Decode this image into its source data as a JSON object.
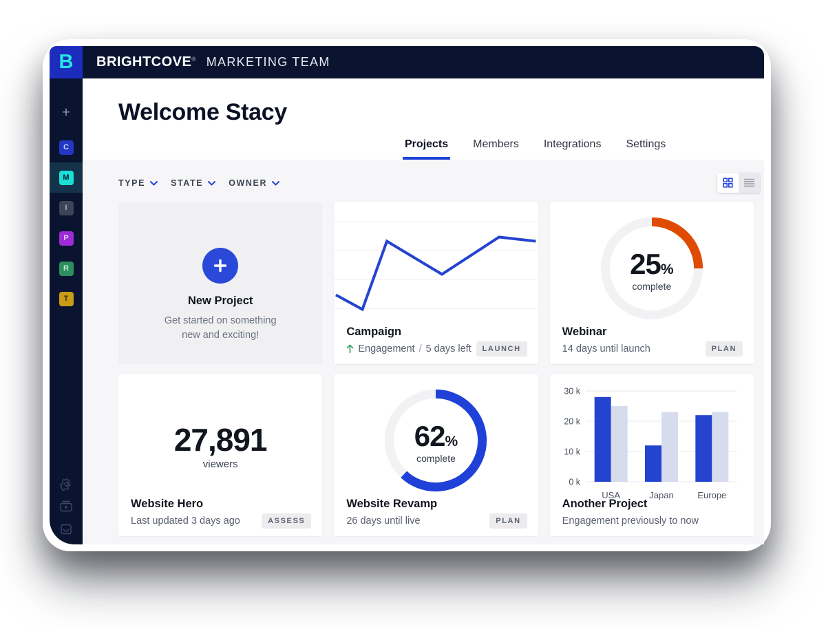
{
  "brand": {
    "name": "BRIGHTCOVE",
    "registered": "®",
    "workspace": "MARKETING TEAM",
    "logo_letter": "B"
  },
  "colors": {
    "navy": "#0a1430",
    "logo_blue": "#1c2dbd",
    "cyan": "#25e8e4",
    "accent_blue": "#2444d0",
    "donut_blue": "#1f41d8",
    "orange": "#e04b04",
    "donut_track": "#f2f2f4",
    "bar_light": "#d7dbee",
    "green_arrow": "#3aa36c",
    "tab_underline": "#1f45d8"
  },
  "icons": {
    "sidebar_plus": "plus-icon",
    "settings": "gear-icon",
    "video_library": "video-library-icon",
    "bag": "bag-icon",
    "filter_chevron": "chevron-down-icon",
    "grid_view": "grid-view-icon",
    "list_view": "list-view-icon",
    "trend": "trend-up-arrow-icon",
    "new_project": "plus-circle-icon"
  },
  "sidebar": {
    "plus": "+",
    "tiles": [
      {
        "letter": "C",
        "bg": "#2337c4",
        "fg": "#ccd6ff",
        "active": false
      },
      {
        "letter": "M",
        "bg": "#1ae0d4",
        "fg": "#0a1532",
        "active": true
      },
      {
        "letter": "I",
        "bg": "#3c4557",
        "fg": "#aab2c2",
        "active": false
      },
      {
        "letter": "P",
        "bg": "#9d2bd6",
        "fg": "#e8cdf8",
        "active": false
      },
      {
        "letter": "R",
        "bg": "#2e8f5e",
        "fg": "#c6e9d6",
        "active": false
      },
      {
        "letter": "T",
        "bg": "#c99c16",
        "fg": "#443607",
        "active": false
      }
    ]
  },
  "header": {
    "welcome": "Welcome Stacy"
  },
  "tabs": [
    {
      "label": "Projects",
      "active": true
    },
    {
      "label": "Members",
      "active": false
    },
    {
      "label": "Integrations",
      "active": false
    },
    {
      "label": "Settings",
      "active": false
    }
  ],
  "filters": [
    {
      "label": "TYPE"
    },
    {
      "label": "STATE"
    },
    {
      "label": "OWNER"
    }
  ],
  "cards": {
    "new_project": {
      "title": "New Project",
      "subtitle_line1": "Get started on something",
      "subtitle_line2": "new and exciting!"
    },
    "campaign": {
      "title": "Campaign",
      "metric_label": "Engagement",
      "separator": "/",
      "time_left": "5 days left",
      "badge": "LAUNCH"
    },
    "webinar": {
      "title": "Webinar",
      "subtitle": "14 days until launch",
      "badge": "PLAN"
    },
    "website_hero": {
      "stat": "27,891",
      "stat_label": "viewers",
      "title": "Website Hero",
      "subtitle": "Last updated 3 days ago",
      "badge": "ASSESS"
    },
    "website_revamp": {
      "title": "Website Revamp",
      "subtitle": "26 days until live",
      "badge": "PLAN"
    },
    "another_project": {
      "title": "Another Project",
      "subtitle": "Engagement previously to now"
    }
  },
  "chart_data": [
    {
      "id": "campaign-engagement",
      "type": "line",
      "series_name": "Engagement",
      "x_pct": [
        1,
        14,
        26,
        53,
        81,
        99
      ],
      "values_pct": [
        21,
        7,
        73,
        41,
        77,
        73
      ],
      "gridlines_y_pct": [
        8,
        36,
        64,
        92
      ],
      "color": "#2444d0",
      "grid": "horizontal",
      "legend": "none"
    },
    {
      "id": "webinar-progress",
      "type": "donut",
      "percent": 25,
      "unit": "%",
      "caption": "complete",
      "color": "#e04b04",
      "track": "#f2f2f4"
    },
    {
      "id": "website-revamp-progress",
      "type": "donut",
      "percent": 62,
      "unit": "%",
      "caption": "complete",
      "color": "#1f41d8",
      "track": "#f2f2f4"
    },
    {
      "id": "another-project-engagement",
      "type": "bar",
      "categories": [
        "USA",
        "Japan",
        "Europe"
      ],
      "series": [
        {
          "name": "series-1-blue",
          "color": "#2444d0",
          "values": [
            28,
            12,
            22
          ]
        },
        {
          "name": "series-2-light",
          "color": "#d7dbee",
          "values": [
            25,
            23,
            23
          ]
        }
      ],
      "unit": "k",
      "ylim": [
        0,
        30
      ],
      "yticks": [
        "30 k",
        "20 k",
        "10 k",
        "0 k"
      ],
      "grid": true,
      "legend": "none"
    }
  ]
}
